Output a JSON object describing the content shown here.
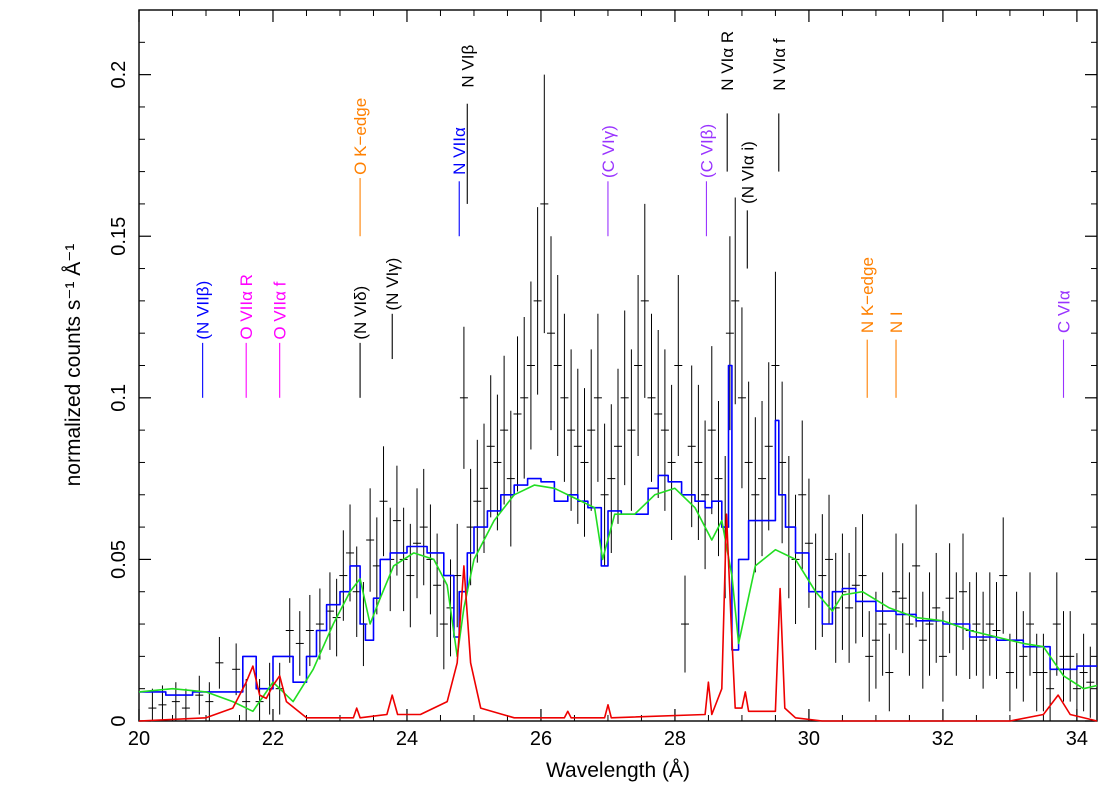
{
  "chart_data": {
    "type": "line",
    "xlabel": "Wavelength (Å)",
    "ylabel": "normalized counts s⁻¹ Å⁻¹",
    "xlim": [
      20,
      34.3
    ],
    "ylim": [
      0,
      0.22
    ],
    "x_ticks": [
      20,
      22,
      24,
      26,
      28,
      30,
      32,
      34
    ],
    "x_tick_labels": [
      "20",
      "22",
      "24",
      "26",
      "28",
      "30",
      "32",
      "34"
    ],
    "y_ticks": [
      0,
      0.05,
      0.1,
      0.15,
      0.2
    ],
    "y_tick_labels": [
      "0",
      "0.05",
      "0.1",
      "0.15",
      "0.2"
    ],
    "colors": {
      "data": "#000000",
      "model_blue": "#0000ff",
      "model_green": "#22dd22",
      "lines_red": "#ee0000",
      "label_blue": "#0000ff",
      "label_magenta": "#ff00ff",
      "label_black": "#000000",
      "label_orange": "#ff8000",
      "label_purple": "#9933ff"
    },
    "series": [
      {
        "color_key": "model_blue",
        "style": "step",
        "x": [
          20,
          20.4,
          20.8,
          21.2,
          21.55,
          21.75,
          22.0,
          22.3,
          22.5,
          22.65,
          22.8,
          23.0,
          23.15,
          23.3,
          23.38,
          23.5,
          23.6,
          23.75,
          24.0,
          24.3,
          24.55,
          24.7,
          24.78,
          24.9,
          25.0,
          25.2,
          25.4,
          25.6,
          25.8,
          26.0,
          26.2,
          26.4,
          26.55,
          26.7,
          26.9,
          27.0,
          27.2,
          27.4,
          27.6,
          27.75,
          27.9,
          28.1,
          28.3,
          28.45,
          28.55,
          28.7,
          28.8,
          28.85,
          28.95,
          29.1,
          29.3,
          29.5,
          29.55,
          29.65,
          29.8,
          30.0,
          30.2,
          30.35,
          30.5,
          30.7,
          31.0,
          31.3,
          31.6,
          32.0,
          32.4,
          32.8,
          33.2,
          33.6,
          34.0,
          34.3
        ],
        "y": [
          0.009,
          0.008,
          0.009,
          0.009,
          0.02,
          0.01,
          0.02,
          0.012,
          0.02,
          0.028,
          0.036,
          0.04,
          0.048,
          0.03,
          0.025,
          0.038,
          0.05,
          0.052,
          0.054,
          0.052,
          0.045,
          0.026,
          0.04,
          0.052,
          0.06,
          0.065,
          0.07,
          0.073,
          0.075,
          0.074,
          0.068,
          0.07,
          0.068,
          0.066,
          0.048,
          0.065,
          0.064,
          0.064,
          0.072,
          0.076,
          0.074,
          0.07,
          0.068,
          0.066,
          0.068,
          0.06,
          0.11,
          0.022,
          0.05,
          0.062,
          0.062,
          0.093,
          0.07,
          0.06,
          0.052,
          0.04,
          0.03,
          0.04,
          0.041,
          0.037,
          0.034,
          0.033,
          0.031,
          0.03,
          0.026,
          0.025,
          0.023,
          0.016,
          0.017,
          0.017
        ]
      },
      {
        "color_key": "model_green",
        "style": "line",
        "x": [
          20,
          20.5,
          21.0,
          21.4,
          21.7,
          22.0,
          22.3,
          22.6,
          22.9,
          23.15,
          23.3,
          23.45,
          23.6,
          23.8,
          24.1,
          24.4,
          24.6,
          24.75,
          24.85,
          25.0,
          25.3,
          25.6,
          25.9,
          26.2,
          26.5,
          26.8,
          26.92,
          27.1,
          27.4,
          27.7,
          28.0,
          28.3,
          28.55,
          28.7,
          28.85,
          28.95,
          29.2,
          29.5,
          29.8,
          30.1,
          30.35,
          30.5,
          30.8,
          31.2,
          31.6,
          32.0,
          32.4,
          32.8,
          33.2,
          33.5,
          33.8,
          34.1,
          34.3
        ],
        "y": [
          0.009,
          0.01,
          0.009,
          0.006,
          0.003,
          0.012,
          0.006,
          0.016,
          0.03,
          0.04,
          0.044,
          0.03,
          0.038,
          0.048,
          0.052,
          0.05,
          0.042,
          0.02,
          0.035,
          0.05,
          0.062,
          0.07,
          0.073,
          0.072,
          0.069,
          0.066,
          0.05,
          0.064,
          0.064,
          0.07,
          0.072,
          0.066,
          0.056,
          0.062,
          0.045,
          0.024,
          0.048,
          0.053,
          0.05,
          0.04,
          0.034,
          0.039,
          0.04,
          0.035,
          0.032,
          0.031,
          0.028,
          0.026,
          0.024,
          0.023,
          0.014,
          0.01,
          0.011
        ]
      },
      {
        "color_key": "lines_red",
        "style": "line",
        "x": [
          20,
          21.0,
          21.4,
          21.6,
          21.7,
          21.8,
          21.9,
          22.0,
          22.1,
          22.2,
          22.5,
          23.2,
          23.25,
          23.3,
          23.7,
          23.78,
          23.86,
          24.2,
          24.6,
          24.75,
          24.85,
          24.95,
          25.1,
          25.6,
          26.0,
          26.35,
          26.4,
          26.45,
          26.95,
          27.0,
          27.05,
          28.45,
          28.5,
          28.55,
          28.7,
          28.77,
          28.84,
          28.9,
          29.0,
          29.05,
          29.1,
          29.5,
          29.57,
          29.64,
          29.8,
          30.2,
          33.0,
          33.5,
          33.72,
          33.9,
          34.3
        ],
        "y": [
          0.0,
          0.001,
          0.004,
          0.012,
          0.017,
          0.008,
          0.007,
          0.011,
          0.014,
          0.006,
          0.001,
          0.001,
          0.004,
          0.001,
          0.002,
          0.008,
          0.002,
          0.002,
          0.006,
          0.018,
          0.048,
          0.018,
          0.004,
          0.001,
          0.001,
          0.001,
          0.003,
          0.001,
          0.001,
          0.005,
          0.001,
          0.002,
          0.012,
          0.002,
          0.01,
          0.064,
          0.03,
          0.004,
          0.004,
          0.009,
          0.003,
          0.003,
          0.041,
          0.004,
          0.001,
          0.0,
          0.0,
          0.002,
          0.008,
          0.002,
          0.0
        ]
      }
    ],
    "data_points": {
      "color_key": "data",
      "x": [
        20.2,
        20.35,
        20.55,
        20.7,
        20.9,
        21.05,
        21.2,
        21.45,
        21.6,
        21.8,
        21.95,
        22.1,
        22.25,
        22.4,
        22.55,
        22.7,
        22.85,
        22.95,
        23.05,
        23.15,
        23.25,
        23.35,
        23.45,
        23.55,
        23.65,
        23.75,
        23.85,
        23.95,
        24.05,
        24.15,
        24.25,
        24.35,
        24.45,
        24.55,
        24.65,
        24.75,
        24.85,
        24.95,
        25.05,
        25.15,
        25.25,
        25.35,
        25.45,
        25.55,
        25.65,
        25.75,
        25.85,
        25.95,
        26.05,
        26.15,
        26.25,
        26.35,
        26.45,
        26.55,
        26.65,
        26.75,
        26.85,
        26.95,
        27.05,
        27.15,
        27.25,
        27.35,
        27.45,
        27.55,
        27.65,
        27.75,
        27.85,
        27.95,
        28.05,
        28.15,
        28.25,
        28.35,
        28.45,
        28.55,
        28.65,
        28.75,
        28.82,
        28.9,
        29.0,
        29.1,
        29.2,
        29.3,
        29.4,
        29.5,
        29.6,
        29.7,
        29.8,
        29.9,
        30.0,
        30.1,
        30.2,
        30.3,
        30.4,
        30.5,
        30.6,
        30.7,
        30.8,
        30.9,
        31.0,
        31.1,
        31.2,
        31.3,
        31.4,
        31.5,
        31.6,
        31.7,
        31.8,
        31.9,
        32.0,
        32.1,
        32.2,
        32.3,
        32.4,
        32.5,
        32.6,
        32.7,
        32.8,
        32.9,
        33.0,
        33.1,
        33.2,
        33.3,
        33.4,
        33.5,
        33.6,
        33.7,
        33.8,
        33.9,
        34.0,
        34.1,
        34.2
      ],
      "y": [
        0.004,
        0.005,
        0.006,
        0.004,
        0.008,
        0.006,
        0.018,
        0.016,
        0.006,
        0.006,
        0.01,
        0.01,
        0.028,
        0.024,
        0.028,
        0.03,
        0.034,
        0.032,
        0.045,
        0.052,
        0.04,
        0.03,
        0.056,
        0.048,
        0.068,
        0.05,
        0.062,
        0.05,
        0.045,
        0.055,
        0.06,
        0.05,
        0.042,
        0.03,
        0.035,
        0.045,
        0.1,
        0.06,
        0.068,
        0.072,
        0.085,
        0.08,
        0.09,
        0.075,
        0.095,
        0.1,
        0.11,
        0.13,
        0.16,
        0.12,
        0.11,
        0.1,
        0.09,
        0.085,
        0.08,
        0.09,
        0.1,
        0.07,
        0.075,
        0.085,
        0.1,
        0.09,
        0.11,
        0.13,
        0.1,
        0.095,
        0.09,
        0.08,
        0.11,
        0.03,
        0.085,
        0.08,
        0.07,
        0.09,
        0.075,
        0.06,
        0.12,
        0.13,
        0.1,
        0.08,
        0.07,
        0.075,
        0.085,
        0.11,
        0.08,
        0.06,
        0.05,
        0.07,
        0.055,
        0.04,
        0.045,
        0.05,
        0.035,
        0.04,
        0.035,
        0.042,
        0.045,
        0.02,
        0.025,
        0.03,
        0.015,
        0.04,
        0.038,
        0.03,
        0.048,
        0.025,
        0.03,
        0.035,
        0.02,
        0.038,
        0.03,
        0.04,
        0.028,
        0.03,
        0.025,
        0.03,
        0.028,
        0.045,
        0.015,
        0.025,
        0.02,
        0.03,
        0.015,
        0.015,
        0.01,
        0.03,
        0.02,
        0.02,
        0.01,
        0.015,
        0.012
      ],
      "err": [
        0.006,
        0.006,
        0.006,
        0.006,
        0.006,
        0.006,
        0.008,
        0.008,
        0.007,
        0.007,
        0.008,
        0.008,
        0.01,
        0.01,
        0.011,
        0.011,
        0.012,
        0.012,
        0.014,
        0.015,
        0.014,
        0.013,
        0.016,
        0.015,
        0.017,
        0.016,
        0.017,
        0.016,
        0.016,
        0.017,
        0.018,
        0.017,
        0.016,
        0.014,
        0.015,
        0.016,
        0.022,
        0.018,
        0.019,
        0.02,
        0.022,
        0.021,
        0.023,
        0.021,
        0.024,
        0.025,
        0.026,
        0.029,
        0.04,
        0.03,
        0.028,
        0.026,
        0.025,
        0.024,
        0.023,
        0.025,
        0.026,
        0.022,
        0.023,
        0.024,
        0.027,
        0.025,
        0.028,
        0.03,
        0.026,
        0.026,
        0.025,
        0.024,
        0.028,
        0.015,
        0.025,
        0.024,
        0.023,
        0.026,
        0.024,
        0.022,
        0.03,
        0.032,
        0.028,
        0.025,
        0.024,
        0.024,
        0.026,
        0.029,
        0.025,
        0.022,
        0.02,
        0.023,
        0.02,
        0.018,
        0.019,
        0.02,
        0.017,
        0.018,
        0.017,
        0.018,
        0.019,
        0.014,
        0.015,
        0.016,
        0.012,
        0.018,
        0.017,
        0.016,
        0.019,
        0.015,
        0.016,
        0.017,
        0.014,
        0.017,
        0.016,
        0.018,
        0.015,
        0.016,
        0.015,
        0.016,
        0.015,
        0.018,
        0.012,
        0.015,
        0.014,
        0.016,
        0.012,
        0.012,
        0.011,
        0.016,
        0.014,
        0.014,
        0.011,
        0.012,
        0.011
      ]
    },
    "annotations": [
      {
        "text": "(N VIIβ)",
        "x": 20.95,
        "y_label": 0.118,
        "y_line_top": 0.117,
        "y_line_bottom": 0.1,
        "color_key": "label_blue"
      },
      {
        "text": "O VIIα R",
        "x": 21.6,
        "y_label": 0.118,
        "y_line_top": 0.117,
        "y_line_bottom": 0.1,
        "color_key": "label_magenta"
      },
      {
        "text": "O VIIα f",
        "x": 22.1,
        "y_label": 0.118,
        "y_line_top": 0.117,
        "y_line_bottom": 0.1,
        "color_key": "label_magenta"
      },
      {
        "text": "(N VIδ)",
        "x": 23.3,
        "y_label": 0.118,
        "y_line_top": 0.117,
        "y_line_bottom": 0.1,
        "color_key": "label_black"
      },
      {
        "text": "(N VIγ)",
        "x": 23.78,
        "y_label": 0.127,
        "y_line_top": 0.126,
        "y_line_bottom": 0.112,
        "color_key": "label_black"
      },
      {
        "text": "O K−edge",
        "x": 23.3,
        "y_label": 0.169,
        "y_line_top": 0.168,
        "y_line_bottom": 0.15,
        "color_key": "label_orange"
      },
      {
        "text": "N VIIα",
        "x": 24.78,
        "y_label": 0.169,
        "y_line_top": 0.167,
        "y_line_bottom": 0.15,
        "color_key": "label_blue"
      },
      {
        "text": "N VIβ",
        "x": 24.9,
        "y_label": 0.196,
        "y_line_top": 0.191,
        "y_line_bottom": 0.16,
        "color_key": "label_black"
      },
      {
        "text": "(C VIγ)",
        "x": 27.0,
        "y_label": 0.168,
        "y_line_top": 0.167,
        "y_line_bottom": 0.15,
        "color_key": "label_purple"
      },
      {
        "text": "(C VIβ)",
        "x": 28.47,
        "y_label": 0.168,
        "y_line_top": 0.167,
        "y_line_bottom": 0.15,
        "color_key": "label_purple"
      },
      {
        "text": "N VIα R",
        "x": 28.78,
        "y_label": 0.195,
        "y_line_top": 0.188,
        "y_line_bottom": 0.17,
        "color_key": "label_black"
      },
      {
        "text": "(N VIα i)",
        "x": 29.08,
        "y_label": 0.16,
        "y_line_top": 0.158,
        "y_line_bottom": 0.14,
        "color_key": "label_black"
      },
      {
        "text": "N VIα f",
        "x": 29.55,
        "y_label": 0.195,
        "y_line_top": 0.188,
        "y_line_bottom": 0.17,
        "color_key": "label_black"
      },
      {
        "text": "N K−edge",
        "x": 30.87,
        "y_label": 0.12,
        "y_line_top": 0.118,
        "y_line_bottom": 0.1,
        "color_key": "label_orange"
      },
      {
        "text": "N I",
        "x": 31.3,
        "y_label": 0.12,
        "y_line_top": 0.118,
        "y_line_bottom": 0.1,
        "color_key": "label_orange"
      },
      {
        "text": "C VIα",
        "x": 33.8,
        "y_label": 0.12,
        "y_line_top": 0.118,
        "y_line_bottom": 0.1,
        "color_key": "label_purple"
      }
    ]
  }
}
